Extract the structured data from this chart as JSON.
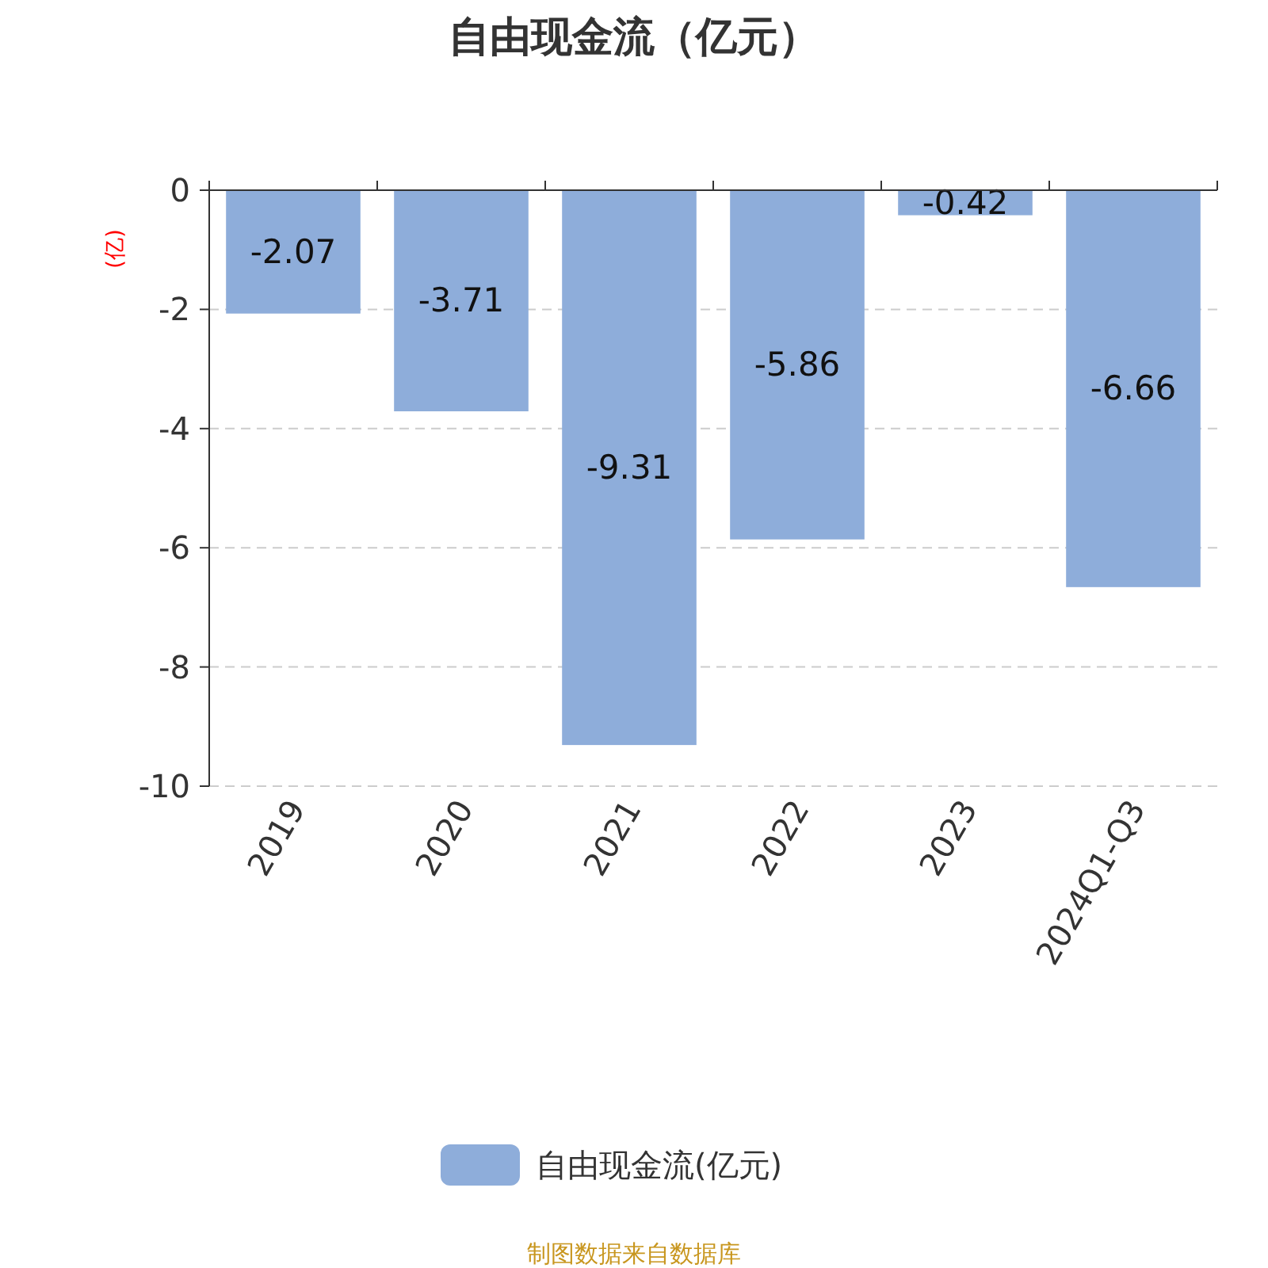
{
  "chart_data": {
    "type": "bar",
    "title": "自由现金流（亿元）",
    "ylabel": "(亿)",
    "categories": [
      "2019",
      "2020",
      "2021",
      "2022",
      "2023",
      "2024Q1-Q3"
    ],
    "series": [
      {
        "name": "自由现金流(亿元)",
        "color": "#8eadda",
        "values": [
          -2.07,
          -3.71,
          -9.31,
          -5.86,
          -0.42,
          -6.66
        ]
      }
    ],
    "ylim": [
      -10,
      0
    ],
    "yticks": [
      -10,
      -8,
      -6,
      -4,
      -2,
      0
    ],
    "grid": "y",
    "legend": "bottom",
    "data_labels": true,
    "annotations": [
      "制图数据来自数据库"
    ]
  }
}
